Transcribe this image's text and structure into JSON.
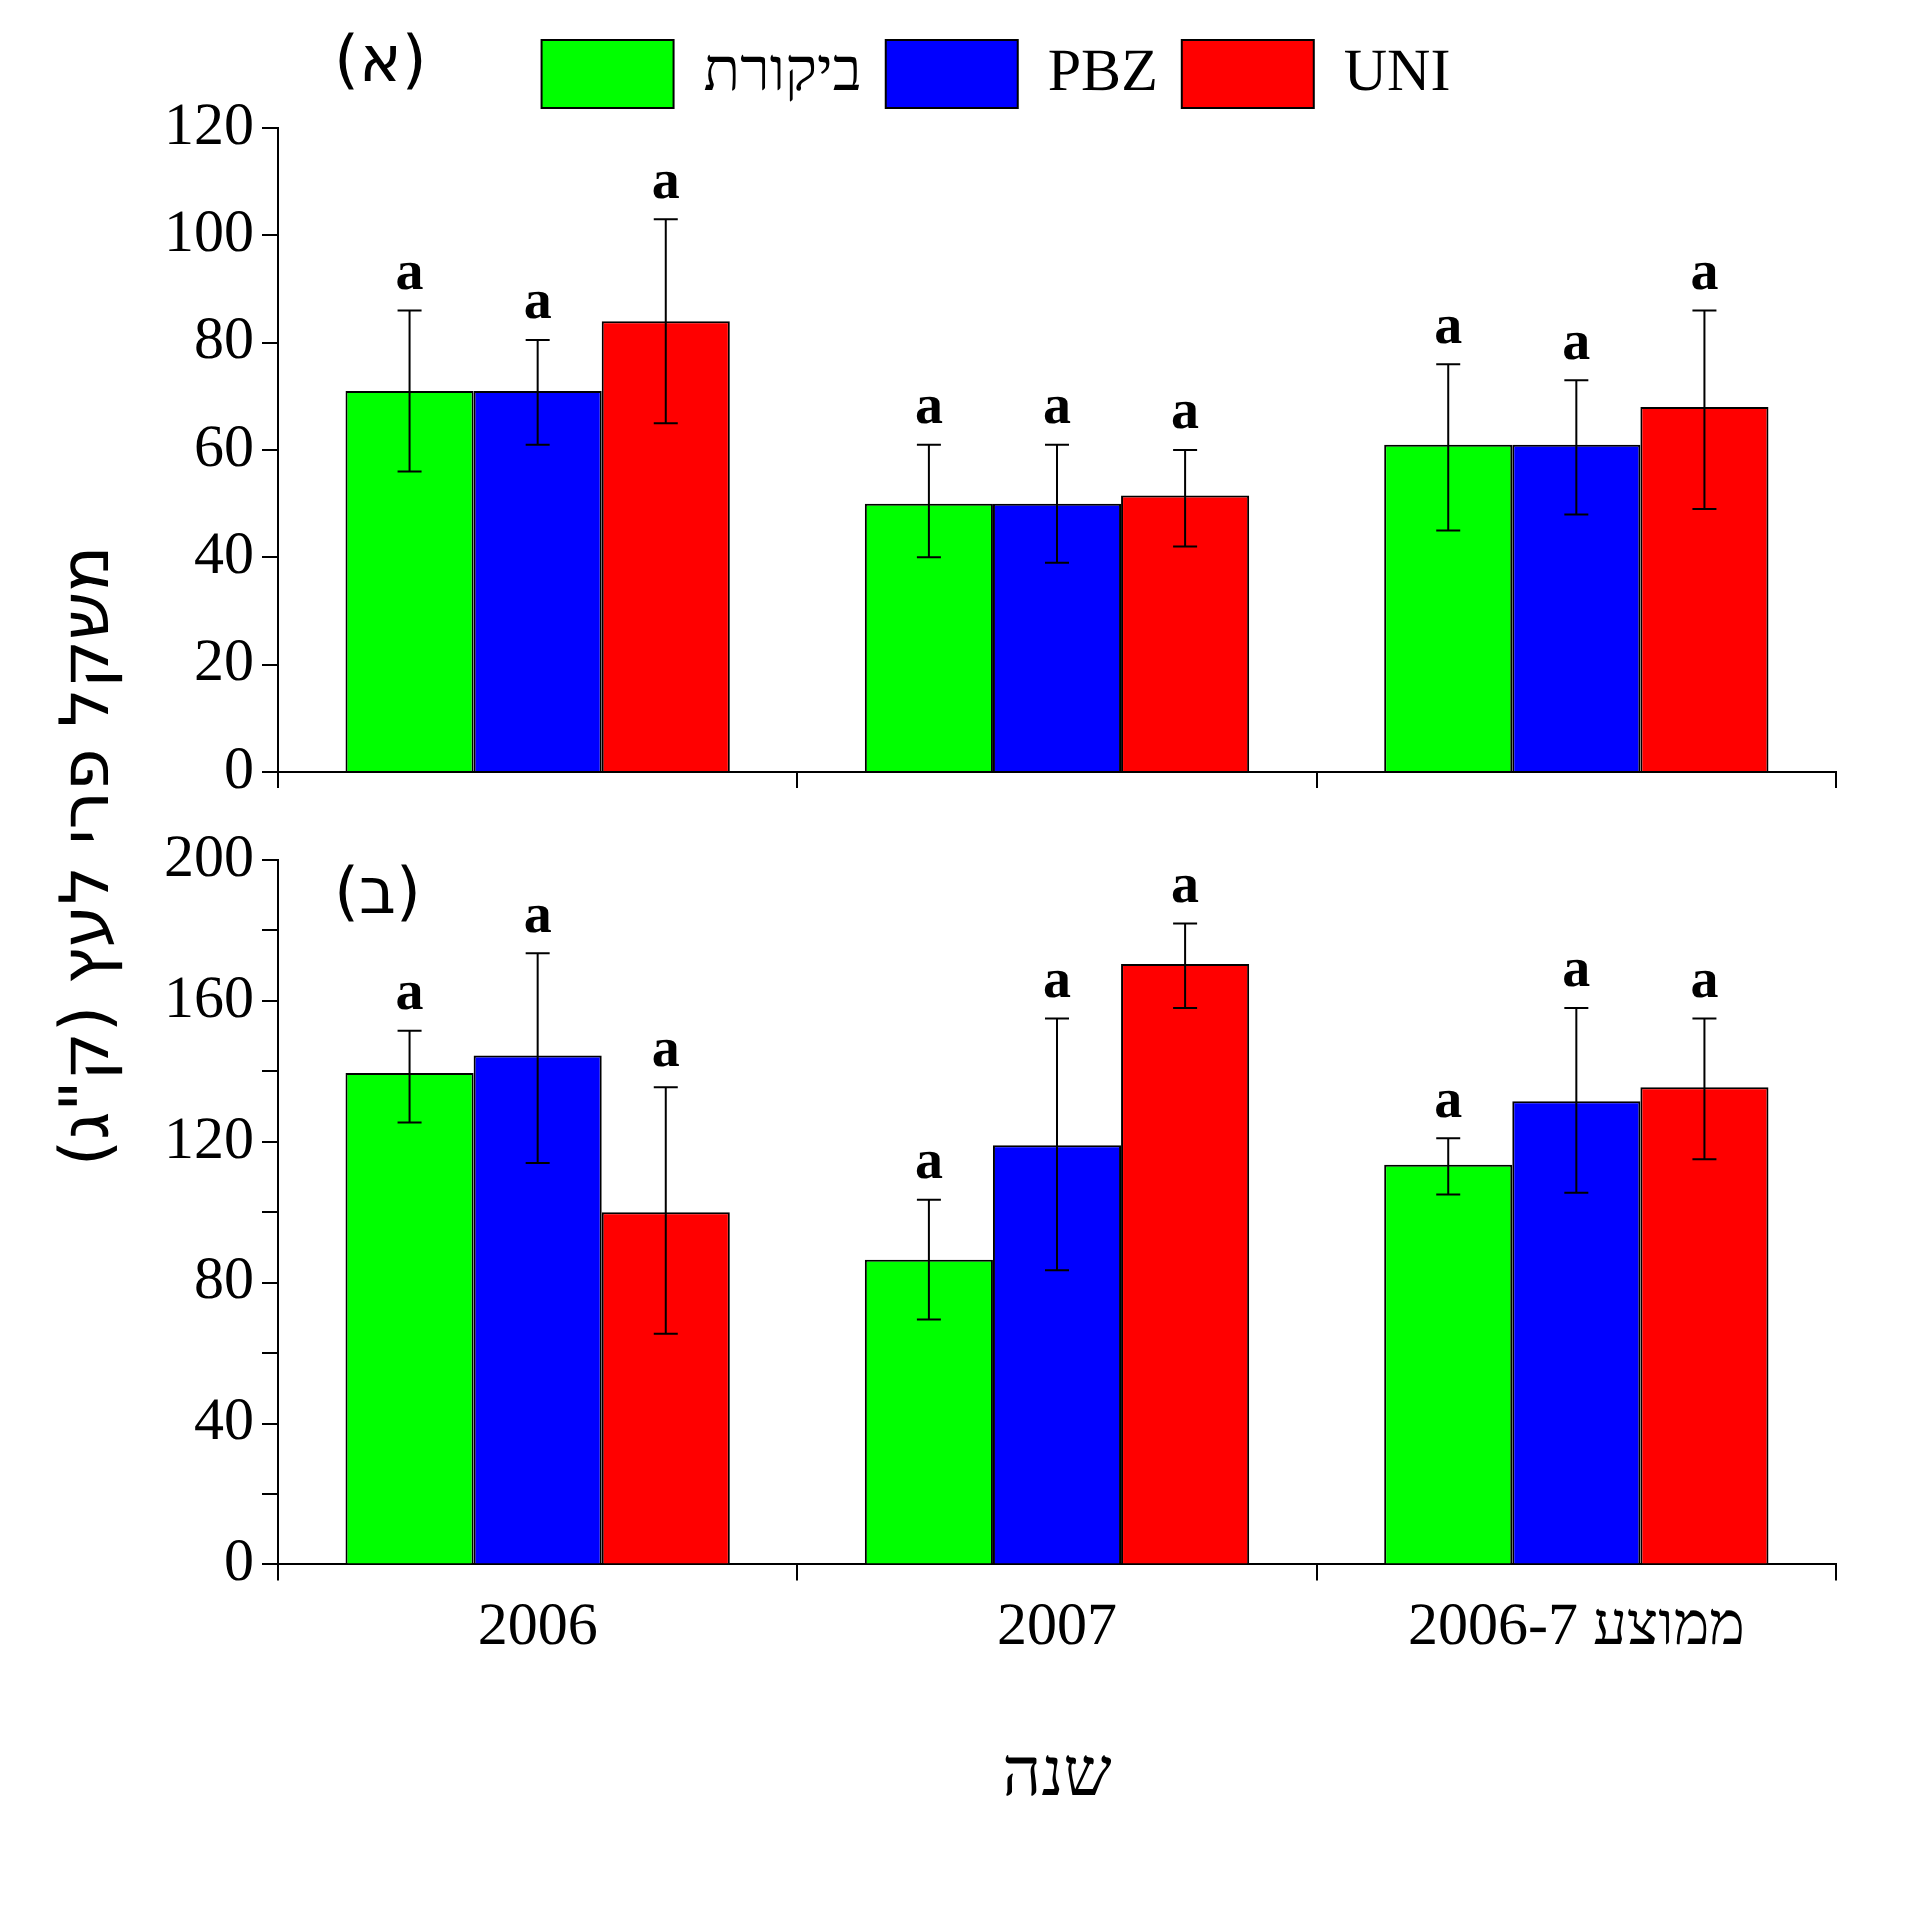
{
  "chart_data": [
    {
      "type": "bar",
      "title": "(א)",
      "ylabel": "משקל פרי לעץ (ק\"ג)",
      "categories": [
        null,
        null,
        null
      ],
      "tick_labels": "y",
      "legend": "top",
      "grid": false,
      "ylim": [
        0,
        120
      ],
      "yticks": [
        0,
        20,
        40,
        60,
        80,
        100,
        120
      ],
      "series": [
        {
          "name": "ביקורת",
          "color": "#00ff00",
          "values": [
            71,
            50,
            61
          ],
          "errors": [
            [
              56,
              86
            ],
            [
              40,
              61
            ],
            [
              45,
              76
            ]
          ],
          "value_labels": [
            "a",
            "a",
            "a"
          ]
        },
        {
          "name": "PBZ",
          "color": "#0000ff",
          "values": [
            71,
            50,
            61
          ],
          "errors": [
            [
              61,
              80.5
            ],
            [
              39,
              61
            ],
            [
              48,
              73
            ]
          ],
          "value_labels": [
            "a",
            "a",
            "a"
          ]
        },
        {
          "name": "UNI",
          "color": "#ff0000",
          "values": [
            84,
            51.5,
            68
          ],
          "errors": [
            [
              65,
              103
            ],
            [
              42,
              60
            ],
            [
              49,
              86
            ]
          ],
          "value_labels": [
            "a",
            "a",
            "a"
          ]
        }
      ]
    },
    {
      "type": "bar",
      "title": "(ב)",
      "xlabel": "שנה",
      "categories": [
        "2006",
        "2007",
        "ממוצע 2006-7"
      ],
      "legend": false,
      "grid": false,
      "ylim": [
        0,
        200
      ],
      "yticks": [
        0,
        {
          "value": 20,
          "label": null
        },
        40,
        {
          "value": 60,
          "label": null
        },
        80,
        {
          "value": 100,
          "label": null
        },
        120,
        {
          "value": 140,
          "label": null
        },
        160,
        {
          "value": 180,
          "label": null
        },
        200
      ],
      "series": [
        {
          "color": "#00ff00",
          "values": [
            139.5,
            86.5,
            113.5
          ],
          "errors": [
            [
              125.5,
              151.5
            ],
            [
              69.5,
              103.5
            ],
            [
              105,
              121
            ]
          ],
          "value_labels": [
            "a",
            "a",
            "a"
          ]
        },
        {
          "color": "#0000ff",
          "values": [
            144.5,
            119,
            131.5
          ],
          "errors": [
            [
              114,
              173.5
            ],
            [
              83.5,
              155
            ],
            [
              105.5,
              158
            ]
          ],
          "value_labels": [
            "a",
            "a",
            "a"
          ]
        },
        {
          "color": "#ff0000",
          "values": [
            100,
            170.5,
            135.5
          ],
          "errors": [
            [
              65.5,
              135.5
            ],
            [
              158,
              182
            ],
            [
              115,
              155
            ]
          ],
          "value_labels": [
            "a",
            "a",
            "a"
          ]
        }
      ]
    }
  ]
}
